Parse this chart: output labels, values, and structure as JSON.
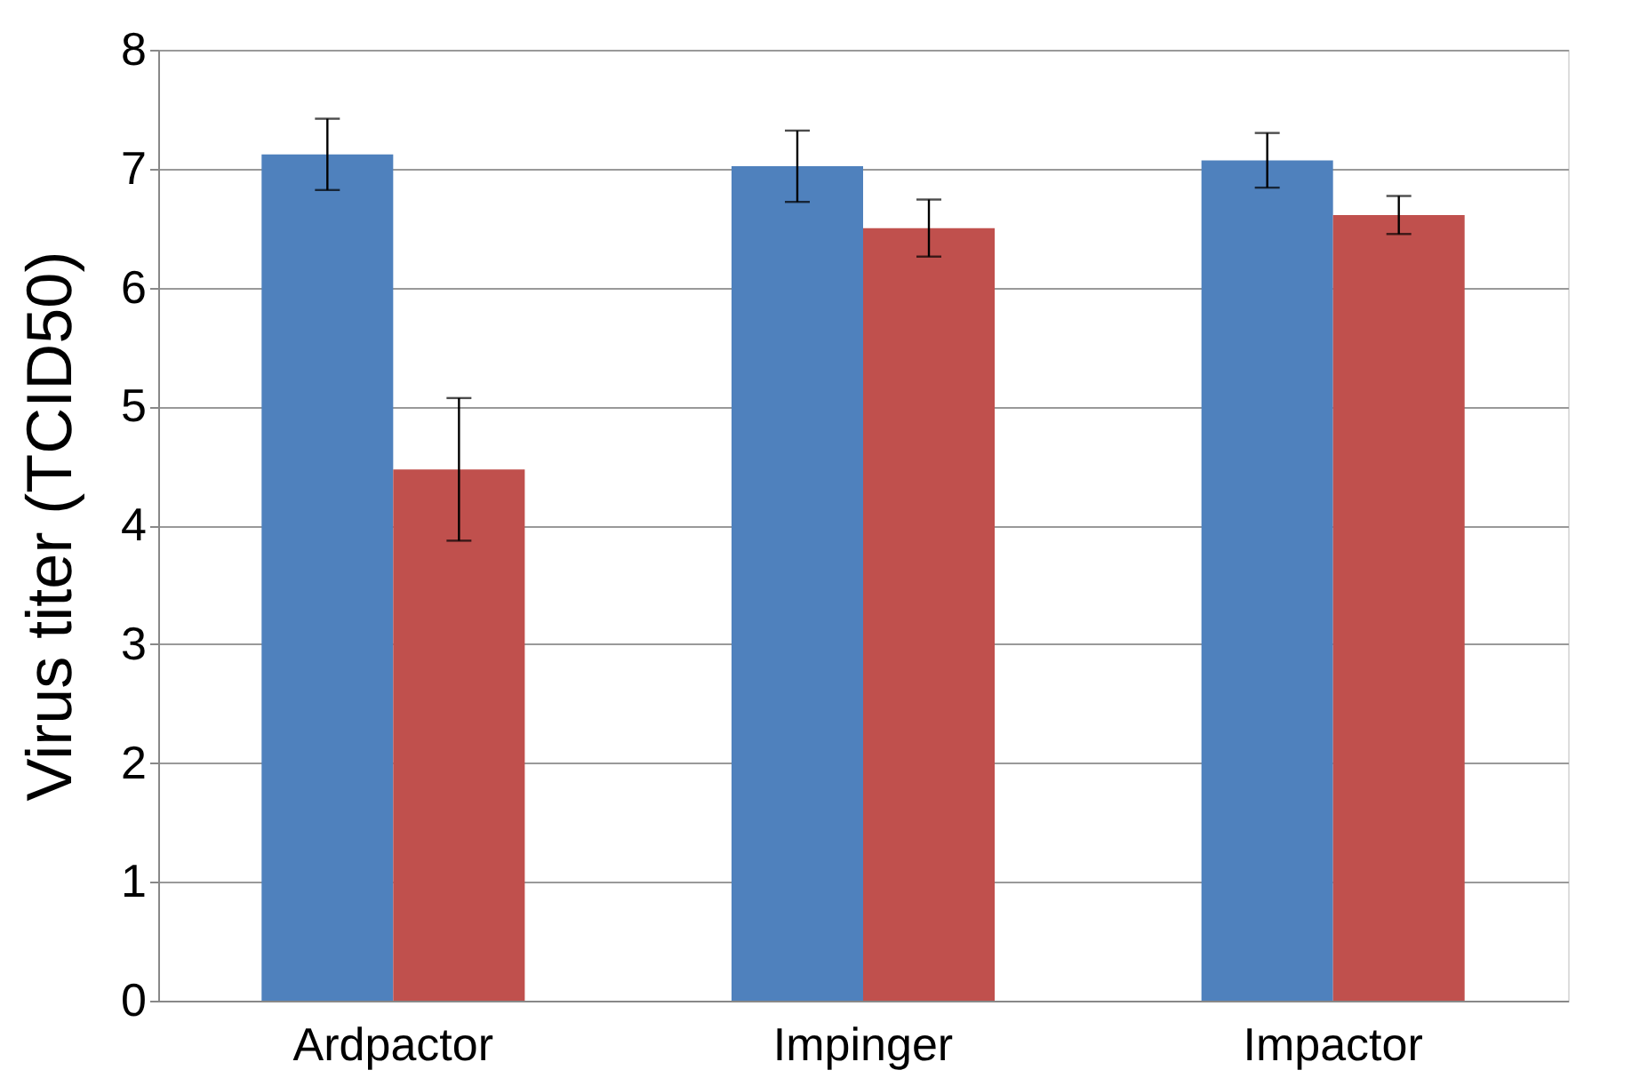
{
  "chart_data": {
    "type": "bar",
    "ylabel": "Virus titer (TCID50)",
    "categories": [
      "Ardpactor",
      "Impinger",
      "Impactor"
    ],
    "series": [
      {
        "color": "#4f81bd",
        "values": [
          7.12,
          7.02,
          7.07
        ],
        "errors": [
          0.3,
          0.3,
          0.23
        ]
      },
      {
        "color": "#c0504d",
        "values": [
          4.47,
          6.5,
          6.61
        ],
        "errors": [
          0.6,
          0.24,
          0.16
        ]
      }
    ],
    "ylim": [
      0,
      8
    ],
    "yticks": [
      0,
      1,
      2,
      3,
      4,
      5,
      6,
      7,
      8
    ],
    "grid": "y",
    "legend": false
  }
}
